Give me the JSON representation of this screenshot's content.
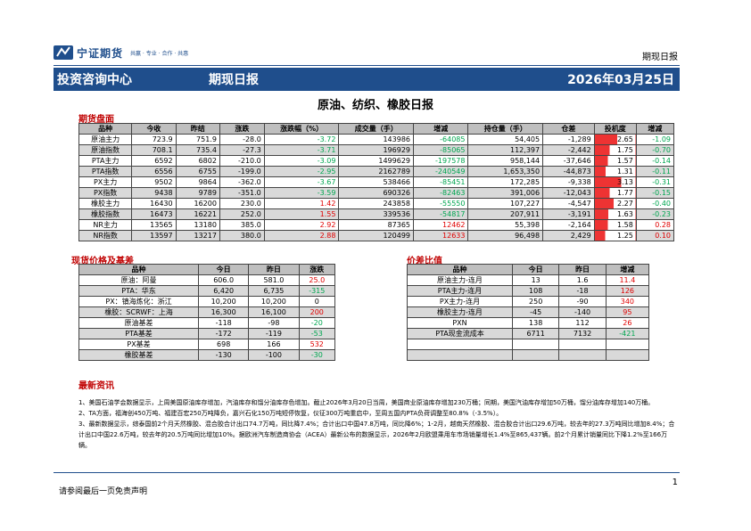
{
  "header": {
    "logo_name": "宁证期货",
    "logo_sub": "共赢 · 专业 · 合作 · 共惠",
    "doc_type": "期现日报",
    "center": "投资咨询中心",
    "report": "期现日报",
    "date": "2026年03月25日"
  },
  "subtitle": "原油、纺织、橡胶日报",
  "futures": {
    "title": "期货盘面",
    "headers": [
      "品种",
      "今收",
      "昨结",
      "涨跌",
      "涨跌幅（%）",
      "成交量（手）",
      "增减",
      "持仓量（手）",
      "仓差",
      "投机度",
      "增减"
    ],
    "rows": [
      [
        "原油主力",
        "723.9",
        "751.9",
        "-28.0",
        "-3.72",
        "143986",
        "-64085",
        "54,405",
        "-1,289",
        "2.65",
        "-1.09"
      ],
      [
        "原油指数",
        "708.1",
        "735.4",
        "-27.3",
        "-3.71",
        "196929",
        "-85065",
        "112,397",
        "-2,442",
        "1.75",
        "-0.70"
      ],
      [
        "PTA主力",
        "6592",
        "6802",
        "-210.0",
        "-3.09",
        "1499629",
        "-197578",
        "958,144",
        "-37,646",
        "1.57",
        "-0.14"
      ],
      [
        "PTA指数",
        "6556",
        "6755",
        "-199.0",
        "-2.95",
        "2162789",
        "-240549",
        "1,653,350",
        "-44,873",
        "1.31",
        "-0.11"
      ],
      [
        "PX主力",
        "9502",
        "9864",
        "-362.0",
        "-3.67",
        "538466",
        "-85451",
        "172,285",
        "-9,338",
        "3.13",
        "-0.31"
      ],
      [
        "PX指数",
        "9438",
        "9789",
        "-351.0",
        "-3.59",
        "690326",
        "-82463",
        "391,006",
        "-12,043",
        "1.77",
        "-0.15"
      ],
      [
        "橡胶主力",
        "16430",
        "16200",
        "230.0",
        "1.42",
        "243858",
        "-55550",
        "107,227",
        "-4,547",
        "2.27",
        "-0.40"
      ],
      [
        "橡胶指数",
        "16473",
        "16221",
        "252.0",
        "1.55",
        "339536",
        "-54817",
        "207,911",
        "-3,191",
        "1.63",
        "-0.23"
      ],
      [
        "NR主力",
        "13565",
        "13180",
        "385.0",
        "2.92",
        "87365",
        "12462",
        "55,398",
        "-2,164",
        "1.58",
        "0.28"
      ],
      [
        "NR指数",
        "13597",
        "13217",
        "380.0",
        "2.88",
        "120499",
        "12633",
        "96,498",
        "2,429",
        "1.25",
        "0.10"
      ]
    ],
    "spec_fill": [
      0.55,
      0.37,
      0.33,
      0.27,
      0.65,
      0.37,
      0.47,
      0.34,
      0.33,
      0.26
    ]
  },
  "spot": {
    "title": "现货价格及基差",
    "headers": [
      "品种",
      "今日",
      "昨日",
      "涨跌"
    ],
    "rows": [
      [
        "原油：阿曼",
        "606.0",
        "581.0",
        "25.0"
      ],
      [
        "PTA：华东",
        "6,420",
        "6,735",
        "-315"
      ],
      [
        "PX：镇海炼化：浙江",
        "10,200",
        "10,200",
        "0"
      ],
      [
        "橡胶：SCRWF：上海",
        "16,300",
        "16,100",
        "200"
      ],
      [
        "原油基差",
        "-118",
        "-98",
        "-20"
      ],
      [
        "PTA基差",
        "-172",
        "-119",
        "-53"
      ],
      [
        "PX基差",
        "698",
        "166",
        "532"
      ],
      [
        "橡胶基差",
        "-130",
        "-100",
        "-30"
      ]
    ]
  },
  "spread": {
    "title": "价差比值",
    "headers": [
      "品种",
      "今日",
      "昨日",
      "增减"
    ],
    "rows": [
      [
        "原油主力-连月",
        "13",
        "1.6",
        "11.4"
      ],
      [
        "PTA主力-连月",
        "108",
        "-18",
        "126"
      ],
      [
        "PX主力-连月",
        "250",
        "-90",
        "340"
      ],
      [
        "橡胶主力-连月",
        "-45",
        "-140",
        "95"
      ],
      [
        "PXN",
        "138",
        "112",
        "26"
      ],
      [
        "PTA现金流成本",
        "6711",
        "7132",
        "-421"
      ],
      [
        "",
        "",
        "",
        ""
      ],
      [
        "",
        "",
        "",
        ""
      ]
    ]
  },
  "news": {
    "title": "最新资讯",
    "items": [
      "1、美国石油学会数据显示，上周美国原油库存增加，汽油库存和馏分油库存色增加。截止2026年3月20日当周，美国商业原油库存增加230万桶；同期，美国汽油库存增加50万桶，馏分油库存增加140万桶。",
      "2、TA方面，福海创450万吨、福建百宏250万吨降负，嘉兴石化150万吨短停恢复，仪征300万吨重启中，至周五国内PTA负荷调整至80.8%（-3.5%）。",
      "3、最新数据显示，综泰国前2个月天然橡胶、混合胶合计出口74.7万吨，同比降7.4%；合计出口中国47.8万吨，同比降6%；1-2月，越南天然橡胶、混合胶合计出口29.6万吨，较去年的27.3万吨同比增加8.4%；合计出口中国22.6万吨，较去年的20.5万吨同比增加10%。据欧洲汽车制造商协会（ACEA）最新公布的数据显示，2026年2月欧盟乘用车市场销量增长1.4%至865,437辆。前2个月累计销量同比下降1.2%至166万辆。"
    ]
  },
  "footer": {
    "page": "1",
    "disclaimer": "请参阅最后一页免责声明"
  },
  "colors": {
    "brand": "#1f4e8c",
    "up": "#e00000",
    "down": "#00a650",
    "highlight": "#ee3333"
  }
}
